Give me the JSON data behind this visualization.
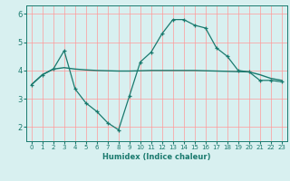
{
  "xlabel": "Humidex (Indice chaleur)",
  "ylabel": "",
  "background_color": "#d8f0f0",
  "grid_color": "#ff9999",
  "line_color": "#1a7a6e",
  "xlim": [
    -0.5,
    23.5
  ],
  "ylim": [
    1.5,
    6.3
  ],
  "yticks": [
    2,
    3,
    4,
    5,
    6
  ],
  "xticks": [
    0,
    1,
    2,
    3,
    4,
    5,
    6,
    7,
    8,
    9,
    10,
    11,
    12,
    13,
    14,
    15,
    16,
    17,
    18,
    19,
    20,
    21,
    22,
    23
  ],
  "series1_x": [
    0,
    1,
    2,
    3,
    4,
    5,
    6,
    7,
    8,
    9,
    10,
    11,
    12,
    13,
    14,
    15,
    16,
    17,
    18,
    19,
    20,
    21,
    22,
    23
  ],
  "series1_y": [
    3.5,
    3.85,
    4.05,
    4.1,
    4.05,
    4.02,
    4.0,
    3.99,
    3.98,
    3.98,
    3.99,
    4.0,
    4.0,
    4.0,
    4.0,
    4.0,
    3.99,
    3.98,
    3.97,
    3.96,
    3.95,
    3.85,
    3.72,
    3.65
  ],
  "series2_x": [
    0,
    1,
    2,
    3,
    4,
    5,
    6,
    7,
    8,
    9,
    10,
    11,
    12,
    13,
    14,
    15,
    16,
    17,
    18,
    19,
    20,
    21,
    22,
    23
  ],
  "series2_y": [
    3.5,
    3.85,
    4.05,
    4.7,
    3.35,
    2.85,
    2.55,
    2.15,
    1.9,
    3.1,
    4.3,
    4.65,
    5.3,
    5.8,
    5.8,
    5.6,
    5.5,
    4.8,
    4.5,
    4.0,
    3.95,
    3.65,
    3.65,
    3.6
  ]
}
